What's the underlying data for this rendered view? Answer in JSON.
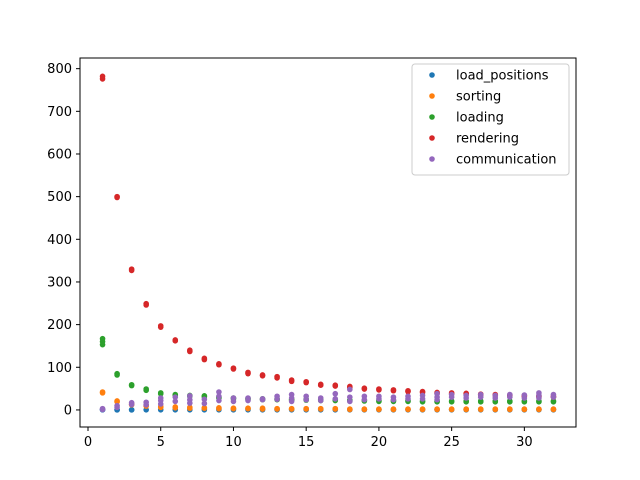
{
  "chart_data": {
    "type": "scatter",
    "xlim": [
      -0.55,
      33.55
    ],
    "ylim": [
      -40,
      825
    ],
    "xticks": [
      0,
      5,
      10,
      15,
      20,
      25,
      30
    ],
    "yticks": [
      0,
      100,
      200,
      300,
      400,
      500,
      600,
      700,
      800
    ],
    "grid": false,
    "legend_position": "top-right",
    "series": [
      {
        "name": "load_positions",
        "color": "#1f77b4",
        "points": [
          [
            1,
            0.5
          ],
          [
            1,
            0.3
          ],
          [
            2,
            0.3
          ],
          [
            2,
            0.2
          ],
          [
            3,
            0.3
          ],
          [
            3,
            0.2
          ],
          [
            4,
            0.3
          ],
          [
            5,
            0.3
          ],
          [
            6,
            0.3
          ],
          [
            7,
            0.3
          ],
          [
            8,
            0.3
          ],
          [
            9,
            0.3
          ],
          [
            10,
            0.3
          ],
          [
            11,
            0.3
          ],
          [
            12,
            0.3
          ],
          [
            13,
            0.3
          ],
          [
            14,
            0.3
          ],
          [
            15,
            0.3
          ],
          [
            16,
            0.3
          ],
          [
            17,
            0.3
          ],
          [
            18,
            0.3
          ],
          [
            19,
            0.3
          ],
          [
            20,
            0.3
          ],
          [
            21,
            0.3
          ],
          [
            22,
            0.3
          ],
          [
            23,
            0.3
          ],
          [
            24,
            0.3
          ],
          [
            25,
            0.3
          ],
          [
            26,
            0.3
          ],
          [
            27,
            0.3
          ],
          [
            28,
            0.3
          ],
          [
            29,
            0.3
          ],
          [
            30,
            0.3
          ],
          [
            31,
            0.3
          ],
          [
            32,
            0.3
          ]
        ]
      },
      {
        "name": "sorting",
        "color": "#ff7f0e",
        "points": [
          [
            1,
            42
          ],
          [
            1,
            40
          ],
          [
            2,
            21
          ],
          [
            2,
            19
          ],
          [
            3,
            14
          ],
          [
            3,
            12
          ],
          [
            4,
            11
          ],
          [
            4,
            9
          ],
          [
            5,
            8
          ],
          [
            5,
            6
          ],
          [
            6,
            7
          ],
          [
            6,
            5
          ],
          [
            7,
            6
          ],
          [
            7,
            4
          ],
          [
            8,
            5
          ],
          [
            8,
            4
          ],
          [
            9,
            5
          ],
          [
            9,
            3
          ],
          [
            10,
            4
          ],
          [
            10,
            3
          ],
          [
            11,
            4
          ],
          [
            11,
            3
          ],
          [
            12,
            4
          ],
          [
            12,
            2
          ],
          [
            13,
            3
          ],
          [
            13,
            2
          ],
          [
            14,
            3
          ],
          [
            14,
            2
          ],
          [
            15,
            3
          ],
          [
            15,
            2
          ],
          [
            16,
            3
          ],
          [
            16,
            2
          ],
          [
            17,
            3
          ],
          [
            17,
            2
          ],
          [
            18,
            2
          ],
          [
            18,
            1
          ],
          [
            19,
            2
          ],
          [
            19,
            1
          ],
          [
            20,
            2
          ],
          [
            20,
            1
          ],
          [
            21,
            2
          ],
          [
            21,
            1
          ],
          [
            22,
            2
          ],
          [
            22,
            1
          ],
          [
            23,
            2
          ],
          [
            23,
            1
          ],
          [
            24,
            2
          ],
          [
            24,
            1
          ],
          [
            25,
            2
          ],
          [
            25,
            1
          ],
          [
            26,
            2
          ],
          [
            26,
            1
          ],
          [
            27,
            2
          ],
          [
            27,
            1
          ],
          [
            28,
            2
          ],
          [
            28,
            1
          ],
          [
            29,
            2
          ],
          [
            29,
            1
          ],
          [
            30,
            2
          ],
          [
            30,
            1
          ],
          [
            31,
            2
          ],
          [
            31,
            1
          ],
          [
            32,
            2
          ],
          [
            32,
            1
          ]
        ]
      },
      {
        "name": "loading",
        "color": "#2ca02c",
        "points": [
          [
            1,
            167
          ],
          [
            1,
            160
          ],
          [
            1,
            153
          ],
          [
            2,
            85
          ],
          [
            2,
            82
          ],
          [
            3,
            59
          ],
          [
            3,
            57
          ],
          [
            4,
            49
          ],
          [
            4,
            46
          ],
          [
            5,
            40
          ],
          [
            5,
            38
          ],
          [
            6,
            36
          ],
          [
            6,
            34
          ],
          [
            7,
            34
          ],
          [
            7,
            32
          ],
          [
            8,
            33
          ],
          [
            8,
            31
          ],
          [
            9,
            30
          ],
          [
            9,
            28
          ],
          [
            10,
            28
          ],
          [
            10,
            26
          ],
          [
            11,
            27
          ],
          [
            11,
            25
          ],
          [
            12,
            26
          ],
          [
            12,
            24
          ],
          [
            13,
            26
          ],
          [
            13,
            24
          ],
          [
            14,
            25
          ],
          [
            14,
            23
          ],
          [
            15,
            25
          ],
          [
            15,
            23
          ],
          [
            16,
            24
          ],
          [
            16,
            22
          ],
          [
            17,
            24
          ],
          [
            17,
            22
          ],
          [
            18,
            23
          ],
          [
            18,
            21
          ],
          [
            19,
            23
          ],
          [
            19,
            21
          ],
          [
            20,
            22
          ],
          [
            20,
            20
          ],
          [
            21,
            22
          ],
          [
            21,
            20
          ],
          [
            22,
            22
          ],
          [
            22,
            20
          ],
          [
            23,
            21
          ],
          [
            23,
            19
          ],
          [
            24,
            21
          ],
          [
            24,
            19
          ],
          [
            25,
            21
          ],
          [
            25,
            19
          ],
          [
            26,
            21
          ],
          [
            26,
            19
          ],
          [
            27,
            21
          ],
          [
            27,
            19
          ],
          [
            28,
            21
          ],
          [
            28,
            19
          ],
          [
            29,
            21
          ],
          [
            29,
            19
          ],
          [
            30,
            21
          ],
          [
            30,
            19
          ],
          [
            31,
            21
          ],
          [
            31,
            19
          ],
          [
            32,
            21
          ],
          [
            32,
            19
          ]
        ]
      },
      {
        "name": "rendering",
        "color": "#d62728",
        "points": [
          [
            1,
            782
          ],
          [
            1,
            776
          ],
          [
            2,
            500
          ],
          [
            2,
            498
          ],
          [
            3,
            330
          ],
          [
            3,
            327
          ],
          [
            4,
            249
          ],
          [
            4,
            246
          ],
          [
            5,
            197
          ],
          [
            5,
            194
          ],
          [
            6,
            164
          ],
          [
            6,
            162
          ],
          [
            7,
            140
          ],
          [
            7,
            137
          ],
          [
            8,
            121
          ],
          [
            8,
            118
          ],
          [
            9,
            108
          ],
          [
            9,
            106
          ],
          [
            10,
            98
          ],
          [
            10,
            96
          ],
          [
            11,
            88
          ],
          [
            11,
            85
          ],
          [
            12,
            82
          ],
          [
            12,
            80
          ],
          [
            13,
            78
          ],
          [
            13,
            75
          ],
          [
            14,
            70
          ],
          [
            14,
            67
          ],
          [
            15,
            66
          ],
          [
            15,
            64
          ],
          [
            16,
            60
          ],
          [
            16,
            58
          ],
          [
            17,
            58
          ],
          [
            17,
            56
          ],
          [
            18,
            55
          ],
          [
            18,
            52
          ],
          [
            19,
            51
          ],
          [
            19,
            49
          ],
          [
            20,
            49
          ],
          [
            20,
            47
          ],
          [
            21,
            47
          ],
          [
            21,
            45
          ],
          [
            22,
            45
          ],
          [
            22,
            43
          ],
          [
            23,
            43
          ],
          [
            23,
            41
          ],
          [
            24,
            41
          ],
          [
            24,
            39
          ],
          [
            25,
            40
          ],
          [
            25,
            38
          ],
          [
            26,
            39
          ],
          [
            26,
            37
          ],
          [
            27,
            37
          ],
          [
            27,
            35
          ],
          [
            28,
            36
          ],
          [
            28,
            34
          ],
          [
            29,
            35
          ],
          [
            29,
            33
          ],
          [
            30,
            34
          ],
          [
            30,
            32
          ],
          [
            31,
            33
          ],
          [
            31,
            31
          ],
          [
            32,
            32
          ],
          [
            32,
            30
          ]
        ]
      },
      {
        "name": "communication",
        "color": "#9467bd",
        "points": [
          [
            1,
            3
          ],
          [
            1,
            1
          ],
          [
            2,
            10
          ],
          [
            2,
            6
          ],
          [
            3,
            17
          ],
          [
            3,
            13
          ],
          [
            4,
            18
          ],
          [
            4,
            12
          ],
          [
            5,
            28
          ],
          [
            5,
            22
          ],
          [
            5,
            14
          ],
          [
            6,
            30
          ],
          [
            6,
            20
          ],
          [
            7,
            33
          ],
          [
            7,
            24
          ],
          [
            7,
            16
          ],
          [
            8,
            25
          ],
          [
            8,
            15
          ],
          [
            9,
            42
          ],
          [
            9,
            32
          ],
          [
            9,
            22
          ],
          [
            10,
            28
          ],
          [
            10,
            20
          ],
          [
            11,
            28
          ],
          [
            11,
            22
          ],
          [
            12,
            26
          ],
          [
            12,
            24
          ],
          [
            13,
            32
          ],
          [
            13,
            25
          ],
          [
            14,
            36
          ],
          [
            14,
            28
          ],
          [
            14,
            20
          ],
          [
            15,
            32
          ],
          [
            15,
            24
          ],
          [
            16,
            28
          ],
          [
            16,
            22
          ],
          [
            17,
            38
          ],
          [
            17,
            26
          ],
          [
            18,
            48
          ],
          [
            18,
            30
          ],
          [
            18,
            20
          ],
          [
            19,
            32
          ],
          [
            19,
            24
          ],
          [
            20,
            32
          ],
          [
            20,
            26
          ],
          [
            21,
            30
          ],
          [
            21,
            24
          ],
          [
            22,
            32
          ],
          [
            22,
            26
          ],
          [
            23,
            34
          ],
          [
            23,
            26
          ],
          [
            24,
            38
          ],
          [
            24,
            30
          ],
          [
            24,
            24
          ],
          [
            25,
            36
          ],
          [
            25,
            30
          ],
          [
            26,
            34
          ],
          [
            26,
            28
          ],
          [
            27,
            36
          ],
          [
            27,
            30
          ],
          [
            28,
            34
          ],
          [
            28,
            28
          ],
          [
            29,
            36
          ],
          [
            29,
            30
          ],
          [
            30,
            35
          ],
          [
            30,
            28
          ],
          [
            31,
            40
          ],
          [
            31,
            34
          ],
          [
            31,
            28
          ],
          [
            32,
            36
          ],
          [
            32,
            30
          ]
        ]
      }
    ]
  }
}
